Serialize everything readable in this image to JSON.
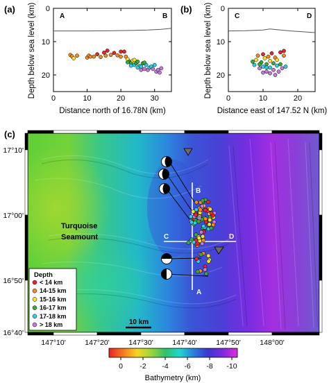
{
  "panel_a": {
    "label": "(a)",
    "ylabel": "Depth below sea level (km)",
    "xlabel": "Distance north of 16.78N (km)",
    "left_marker": "A",
    "right_marker": "B",
    "xlim": [
      0,
      35
    ],
    "ylim": [
      0,
      25
    ],
    "xticks": [
      "0",
      "10",
      "20",
      "30"
    ],
    "yticks": [
      "0",
      "10",
      "20"
    ],
    "seafloor": [
      [
        0,
        6.8
      ],
      [
        10,
        6.8
      ],
      [
        18,
        6.7
      ],
      [
        24,
        6.6
      ],
      [
        28,
        6.5
      ],
      [
        32,
        6.3
      ],
      [
        35,
        6.0
      ]
    ],
    "events": [
      [
        5,
        14.0
      ],
      [
        5.5,
        14.4
      ],
      [
        6,
        15.0
      ],
      [
        7,
        14.2
      ],
      [
        10,
        14.8
      ],
      [
        10.5,
        14.2
      ],
      [
        11,
        14.5
      ],
      [
        12,
        14.5
      ],
      [
        13,
        13.8
      ],
      [
        14,
        14.6
      ],
      [
        15,
        13.3
      ],
      [
        15.5,
        14.2
      ],
      [
        16,
        12.7
      ],
      [
        17,
        14.0
      ],
      [
        18,
        13.4
      ],
      [
        19,
        14.1
      ],
      [
        20,
        14.5
      ],
      [
        21,
        13.0
      ],
      [
        21.5,
        14.5
      ],
      [
        22,
        15.3
      ],
      [
        22.5,
        16.0
      ],
      [
        23,
        16.5
      ],
      [
        23.5,
        15.7
      ],
      [
        24,
        17.0
      ],
      [
        24.5,
        16.5
      ],
      [
        25,
        16.0
      ],
      [
        25.5,
        17.3
      ],
      [
        26,
        17.5
      ],
      [
        26.5,
        16.5
      ],
      [
        27,
        18.2
      ],
      [
        27.5,
        17.0
      ],
      [
        28,
        18.5
      ],
      [
        28.5,
        17.8
      ],
      [
        29,
        17.5
      ],
      [
        29.5,
        18.2
      ],
      [
        30,
        17.0
      ],
      [
        30.5,
        19.0
      ],
      [
        31,
        18.5
      ],
      [
        31.5,
        19.3
      ],
      [
        32,
        18.0
      ],
      [
        24,
        15.5
      ],
      [
        25,
        17.8
      ],
      [
        26,
        18.5
      ],
      [
        27,
        16.3
      ],
      [
        23,
        17.2
      ],
      [
        22,
        16.2
      ],
      [
        20,
        13.0
      ]
    ]
  },
  "panel_b": {
    "label": "(b)",
    "ylabel": "Depth below sea level (km)",
    "xlabel": "Distance east of 147.52 N (km)",
    "left_marker": "C",
    "right_marker": "D",
    "xlim": [
      0,
      25
    ],
    "ylim": [
      0,
      25
    ],
    "xticks": [
      "0",
      "10",
      "20"
    ],
    "yticks": [
      "0",
      "10",
      "20"
    ],
    "seafloor": [
      [
        0,
        6.8
      ],
      [
        5,
        6.7
      ],
      [
        10,
        6.5
      ],
      [
        12,
        6.2
      ],
      [
        14,
        6.4
      ],
      [
        18,
        6.8
      ],
      [
        25,
        7.3
      ]
    ],
    "events": [
      [
        7,
        16.0
      ],
      [
        7.5,
        17.0
      ],
      [
        8,
        15.5
      ],
      [
        8.5,
        14.2
      ],
      [
        9,
        18.0
      ],
      [
        9.5,
        16.2
      ],
      [
        10,
        13.8
      ],
      [
        10,
        17.5
      ],
      [
        10.5,
        15.0
      ],
      [
        11,
        16.8
      ],
      [
        11,
        19.0
      ],
      [
        11.5,
        14.5
      ],
      [
        12,
        17.8
      ],
      [
        12,
        15.8
      ],
      [
        12.5,
        13.5
      ],
      [
        13,
        16.5
      ],
      [
        13,
        18.5
      ],
      [
        13.5,
        14.8
      ],
      [
        14,
        17.2
      ],
      [
        14,
        15.5
      ],
      [
        14.5,
        19.0
      ],
      [
        15,
        13.2
      ],
      [
        15,
        16.8
      ],
      [
        15.5,
        18.0
      ],
      [
        16,
        14.2
      ],
      [
        16,
        12.8
      ],
      [
        16.5,
        17.5
      ],
      [
        9,
        16.8
      ],
      [
        10,
        19.3
      ],
      [
        12,
        19.5
      ],
      [
        13.5,
        20.0
      ],
      [
        11,
        17.8
      ]
    ]
  },
  "panel_c": {
    "label": "(c)",
    "place_label_1": "Turquoise",
    "place_label_2": "Seamount",
    "scale_bar": "10 km",
    "lon_ticks": [
      "147°10'",
      "147°20'",
      "147°30'",
      "147°40'",
      "147°50'",
      "148°00'"
    ],
    "lat_ticks": [
      "17°10'",
      "17°00'",
      "16°50'",
      "16°40'"
    ],
    "profile_labels": {
      "a": "A",
      "b": "B",
      "c": "C",
      "d": "D"
    },
    "legend_title": "Depth",
    "legend": [
      {
        "label": "< 14 km",
        "color": "#e3262b"
      },
      {
        "label": "14-15 km",
        "color": "#f28a1e"
      },
      {
        "label": "15-16 km",
        "color": "#f5e52a"
      },
      {
        "label": "16-17 km",
        "color": "#3aa93a"
      },
      {
        "label": "17-18 km",
        "color": "#2ecde8"
      },
      {
        "label": "> 18 km",
        "color": "#c37ad8"
      }
    ],
    "colorbar": {
      "ticks": [
        "0",
        "-2",
        "-4",
        "-6",
        "-8",
        "-10"
      ],
      "label": "Bathymetry (km)",
      "colors": [
        "#e8242a",
        "#f57a20",
        "#f7d522",
        "#9bd53a",
        "#2fc26a",
        "#1fd7d0",
        "#2a7de0",
        "#3a36d0",
        "#7a2ae0",
        "#e12ad8"
      ]
    }
  },
  "colors": {
    "depth_bins": [
      "#e3262b",
      "#f28a1e",
      "#f5e52a",
      "#3aa93a",
      "#2ecde8",
      "#c37ad8"
    ]
  }
}
